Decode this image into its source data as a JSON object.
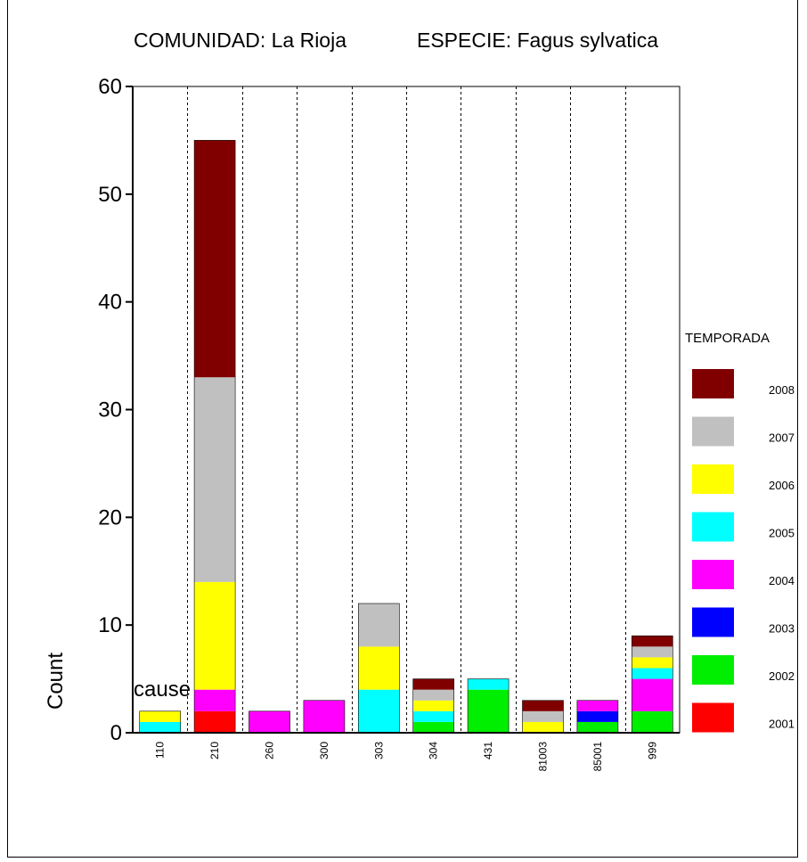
{
  "chart_data": {
    "type": "bar",
    "stacked": true,
    "title": "COMUNIDAD: La Rioja",
    "subtitle": "ESPECIE:  Fagus sylvatica",
    "xlabel": "cause",
    "ylabel": "Count",
    "ylim": [
      0,
      60
    ],
    "yticks": [
      0,
      10,
      20,
      30,
      40,
      50,
      60
    ],
    "categories": [
      "110",
      "210",
      "260",
      "300",
      "303",
      "304",
      "431",
      "81003",
      "85001",
      "999"
    ],
    "legend_title": "TEMPORADA",
    "legend_position": "right",
    "series": [
      {
        "name": "2001",
        "color": "#ff0000",
        "values": [
          0,
          2,
          0,
          0,
          0,
          0,
          0,
          0,
          0,
          0
        ]
      },
      {
        "name": "2002",
        "color": "#00ee00",
        "values": [
          0,
          0,
          0,
          0,
          0,
          1,
          4,
          0,
          1,
          2
        ]
      },
      {
        "name": "2003",
        "color": "#0000ff",
        "values": [
          0,
          0,
          0,
          0,
          0,
          0,
          0,
          0,
          1,
          0
        ]
      },
      {
        "name": "2004",
        "color": "#ff00ff",
        "values": [
          0,
          2,
          2,
          3,
          0,
          0,
          0,
          0,
          1,
          3
        ]
      },
      {
        "name": "2005",
        "color": "#00ffff",
        "values": [
          1,
          0,
          0,
          0,
          4,
          1,
          1,
          0,
          0,
          1
        ]
      },
      {
        "name": "2006",
        "color": "#ffff00",
        "values": [
          1,
          10,
          0,
          0,
          4,
          1,
          0,
          1,
          0,
          1
        ]
      },
      {
        "name": "2007",
        "color": "#c0c0c0",
        "values": [
          0,
          19,
          0,
          0,
          4,
          1,
          0,
          1,
          0,
          1
        ]
      },
      {
        "name": "2008",
        "color": "#800000",
        "values": [
          0,
          22,
          0,
          0,
          0,
          1,
          0,
          1,
          0,
          1
        ]
      }
    ]
  }
}
